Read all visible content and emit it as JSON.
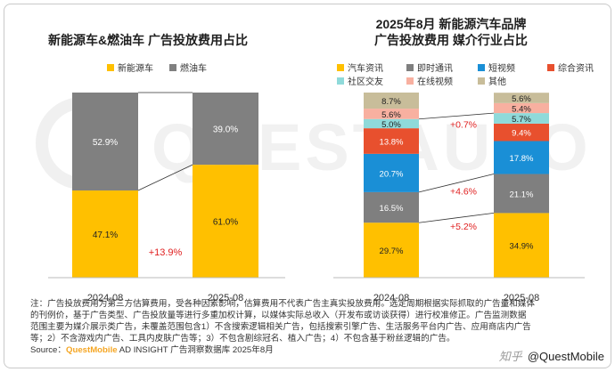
{
  "chart_data": [
    {
      "type": "bar",
      "stacked": true,
      "title": "新能源车&燃油车 广告投放费用占比",
      "categories": [
        "2024-08",
        "2025-08"
      ],
      "series": [
        {
          "name": "新能源车",
          "values": [
            47.1,
            61.0
          ],
          "labels": [
            "47.1%",
            "61.0%"
          ],
          "color": "#ffc000"
        },
        {
          "name": "燃油车",
          "values": [
            52.9,
            39.0
          ],
          "labels": [
            "52.9%",
            "39.0%"
          ],
          "color": "#808080"
        }
      ],
      "annotations": [
        {
          "text": "+13.9%",
          "color": "#e02020"
        }
      ],
      "ylim": [
        0,
        100
      ]
    },
    {
      "type": "bar",
      "stacked": true,
      "title": "2025年8月 新能源汽车品牌\n广告投放费用 媒介行业占比",
      "title_lines": [
        "2025年8月 新能源汽车品牌",
        "广告投放费用 媒介行业占比"
      ],
      "categories": [
        "2024-08",
        "2025-08"
      ],
      "series": [
        {
          "name": "汽车资讯",
          "values": [
            29.7,
            34.9
          ],
          "labels": [
            "29.7%",
            "34.9%"
          ],
          "color": "#ffc000"
        },
        {
          "name": "即时通讯",
          "values": [
            16.5,
            21.1
          ],
          "labels": [
            "16.5%",
            "21.1%"
          ],
          "color": "#7f7f7f"
        },
        {
          "name": "短视频",
          "values": [
            20.7,
            17.8
          ],
          "labels": [
            "20.7%",
            "17.8%"
          ],
          "color": "#1a8fd6"
        },
        {
          "name": "综合资讯",
          "values": [
            13.8,
            9.4
          ],
          "labels": [
            "13.8%",
            "9.4%"
          ],
          "color": "#e8502e"
        },
        {
          "name": "社区交友",
          "values": [
            5.0,
            5.7
          ],
          "labels": [
            "5.0%",
            "5.7%"
          ],
          "color": "#8fdada"
        },
        {
          "name": "在线视频",
          "values": [
            5.6,
            5.4
          ],
          "labels": [
            "5.6%",
            "5.4%"
          ],
          "color": "#f8b0a0"
        },
        {
          "name": "其他",
          "values": [
            8.7,
            5.6
          ],
          "labels": [
            "8.7%",
            "5.6%"
          ],
          "color": "#c8bd9a"
        }
      ],
      "annotations": [
        {
          "text": "+0.7%",
          "series": "社区交友",
          "color": "#e02020"
        },
        {
          "text": "+4.6%",
          "series": "即时通讯",
          "color": "#e02020"
        },
        {
          "text": "+5.2%",
          "series": "汽车资讯",
          "color": "#e02020"
        }
      ],
      "ylim": [
        0,
        100
      ]
    }
  ],
  "notes": {
    "lines": [
      "注：广告投放费用为第三方估算费用，受各种因素影响，估算费用不代表广告主真实投放费用。选定周期根据实际抓取的广告量和媒体",
      "的刊例价，基于广告类型、广告投放量等进行多重加权计算，以媒体实际总收入（开发布或访谈获得）进行校准修正。广告监测数据",
      "范围主要为媒介展示类广告，未覆盖范围包含1）不含搜索逻辑相关广告，包括搜索引擎广告、生活服务平台内广告、应用商店内广告",
      "等；2）不含游戏内广告、工具内皮肤广告等；3）不包含剧综冠名、植入广告；4）不包含基于粉丝逻辑的广告。"
    ],
    "source_label": "Source：",
    "source_brand": "QuestMobile",
    "source_rest": " AD INSIGHT 广告洞察数据库 2025年8月"
  },
  "watermark": {
    "text": "QUESTAUTO",
    "logo_text": "@QuestMobile",
    "logo_icon_text": "知乎"
  }
}
